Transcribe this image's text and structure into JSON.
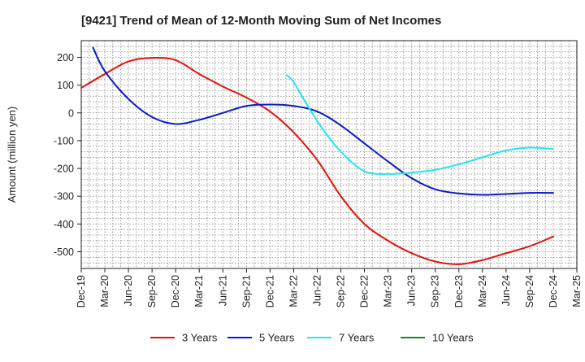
{
  "chart_data": {
    "type": "line",
    "title": "[9421]  Trend of Mean of 12-Month Moving Sum of Net Incomes",
    "ylabel": "Amount (million yen)",
    "xlabel": "",
    "ylim": [
      -560,
      260
    ],
    "yticks": [
      200,
      100,
      0,
      -100,
      -200,
      -300,
      -400,
      -500
    ],
    "xticks": [
      "Dec-19",
      "Mar-20",
      "Jun-20",
      "Sep-20",
      "Dec-20",
      "Mar-21",
      "Jun-21",
      "Sep-21",
      "Dec-21",
      "Mar-22",
      "Jun-22",
      "Sep-22",
      "Dec-22",
      "Mar-23",
      "Jun-23",
      "Sep-23",
      "Dec-23",
      "Mar-24",
      "Jun-24",
      "Sep-24",
      "Dec-24",
      "Mar-25"
    ],
    "grid": true,
    "legend_position": "bottom",
    "series": [
      {
        "name": "3 Years",
        "color": "#e3120b",
        "points": [
          [
            0,
            90
          ],
          [
            1,
            140
          ],
          [
            2,
            185
          ],
          [
            3,
            198
          ],
          [
            4,
            190
          ],
          [
            5,
            140
          ],
          [
            6,
            95
          ],
          [
            7,
            55
          ],
          [
            8,
            5
          ],
          [
            9,
            -70
          ],
          [
            10,
            -170
          ],
          [
            11,
            -300
          ],
          [
            12,
            -400
          ],
          [
            13,
            -460
          ],
          [
            14,
            -505
          ],
          [
            15,
            -535
          ],
          [
            16,
            -545
          ],
          [
            17,
            -530
          ],
          [
            18,
            -505
          ],
          [
            19,
            -480
          ],
          [
            20,
            -445
          ]
        ]
      },
      {
        "name": "5 Years",
        "color": "#0a1bc8",
        "points": [
          [
            0.5,
            235
          ],
          [
            1,
            150
          ],
          [
            2,
            50
          ],
          [
            3,
            -15
          ],
          [
            4,
            -40
          ],
          [
            5,
            -25
          ],
          [
            6,
            0
          ],
          [
            7,
            25
          ],
          [
            8,
            30
          ],
          [
            9,
            25
          ],
          [
            10,
            5
          ],
          [
            11,
            -45
          ],
          [
            12,
            -110
          ],
          [
            13,
            -175
          ],
          [
            14,
            -235
          ],
          [
            15,
            -275
          ],
          [
            16,
            -290
          ],
          [
            17,
            -295
          ],
          [
            18,
            -292
          ],
          [
            19,
            -288
          ],
          [
            20,
            -288
          ]
        ]
      },
      {
        "name": "7 Years",
        "color": "#22e6f0",
        "points": [
          [
            8.7,
            135
          ],
          [
            9,
            110
          ],
          [
            10,
            -30
          ],
          [
            11,
            -140
          ],
          [
            12,
            -210
          ],
          [
            13,
            -220
          ],
          [
            14,
            -215
          ],
          [
            15,
            -205
          ],
          [
            16,
            -185
          ],
          [
            17,
            -160
          ],
          [
            18,
            -135
          ],
          [
            19,
            -125
          ],
          [
            20,
            -130
          ]
        ]
      },
      {
        "name": "10 Years",
        "color": "#1a8a1a",
        "points": []
      }
    ]
  }
}
